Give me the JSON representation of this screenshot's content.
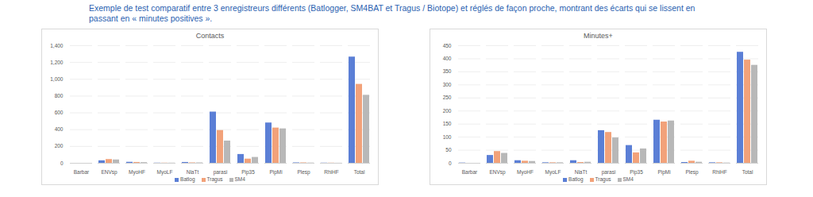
{
  "heading": "Exemple de test comparatif entre 3 enregistreurs différents (Batlogger, SM4BAT et Tragus / Biotope) et réglés de façon proche, montrant des écarts qui se lissent en passant en « minutes positives ».",
  "chart_data": [
    {
      "type": "bar",
      "title": "Contacts",
      "categories": [
        "Barbar",
        "ENVsp",
        "MyoHF",
        "MyoLF",
        "NlaTt",
        "parasi",
        "Pip35",
        "PipMi",
        "Plesp",
        "RhiHF",
        "Total"
      ],
      "series": [
        {
          "name": "Batlog",
          "color": "#5b7fd6",
          "values": [
            0,
            30,
            12,
            2,
            10,
            610,
            105,
            480,
            5,
            2,
            1265
          ]
        },
        {
          "name": "Tragus",
          "color": "#f2a27a",
          "values": [
            0,
            45,
            10,
            2,
            5,
            390,
            50,
            420,
            5,
            2,
            940
          ]
        },
        {
          "name": "SM4",
          "color": "#b8b8b8",
          "values": [
            0,
            40,
            8,
            2,
            5,
            265,
            70,
            410,
            3,
            1,
            810
          ]
        }
      ],
      "ylim": [
        0,
        1400
      ],
      "yticks": [
        0,
        200,
        400,
        600,
        800,
        1000,
        1200,
        1400
      ],
      "grid": true,
      "legend": "bottom"
    },
    {
      "type": "bar",
      "title": "Minutes+",
      "categories": [
        "Barbar",
        "ENVsp",
        "MyoHF",
        "MyoLF",
        "NlaTt",
        "parasi",
        "Pip35",
        "PipMi",
        "Plesp",
        "RhiHF",
        "Total"
      ],
      "series": [
        {
          "name": "Batlog",
          "color": "#5b7fd6",
          "values": [
            1,
            30,
            10,
            2,
            10,
            125,
            68,
            165,
            3,
            2,
            425
          ]
        },
        {
          "name": "Tragus",
          "color": "#f2a27a",
          "values": [
            0,
            45,
            8,
            2,
            3,
            118,
            40,
            158,
            8,
            2,
            395
          ]
        },
        {
          "name": "SM4",
          "color": "#b8b8b8",
          "values": [
            0,
            38,
            7,
            2,
            4,
            97,
            55,
            162,
            4,
            1,
            375
          ]
        }
      ],
      "ylim": [
        0,
        450
      ],
      "yticks": [
        0,
        50,
        100,
        150,
        200,
        250,
        300,
        350,
        400,
        450
      ],
      "grid": true,
      "legend": "bottom"
    }
  ]
}
